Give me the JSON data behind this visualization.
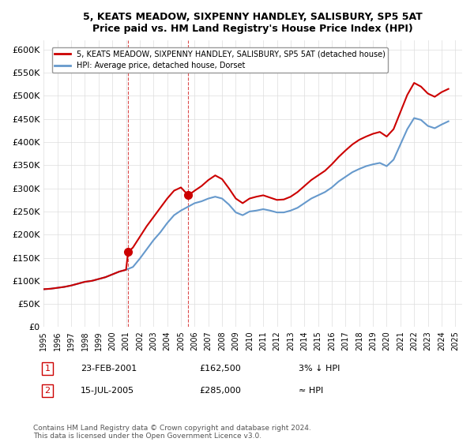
{
  "title": "5, KEATS MEADOW, SIXPENNY HANDLEY, SALISBURY, SP5 5AT",
  "subtitle": "Price paid vs. HM Land Registry's House Price Index (HPI)",
  "ylabel": "",
  "ylim": [
    0,
    620000
  ],
  "yticks": [
    0,
    50000,
    100000,
    150000,
    200000,
    250000,
    300000,
    350000,
    400000,
    450000,
    500000,
    550000,
    600000
  ],
  "xlim_start": 1995.0,
  "xlim_end": 2025.5,
  "legend_line1": "5, KEATS MEADOW, SIXPENNY HANDLEY, SALISBURY, SP5 5AT (detached house)",
  "legend_line2": "HPI: Average price, detached house, Dorset",
  "annotation1_label": "1",
  "annotation1_date": "23-FEB-2001",
  "annotation1_price": "£162,500",
  "annotation1_hpi": "3% ↓ HPI",
  "annotation2_label": "2",
  "annotation2_date": "15-JUL-2005",
  "annotation2_price": "£285,000",
  "annotation2_hpi": "≈ HPI",
  "footer": "Contains HM Land Registry data © Crown copyright and database right 2024.\nThis data is licensed under the Open Government Licence v3.0.",
  "line_color_property": "#cc0000",
  "line_color_hpi": "#6699cc",
  "marker_color_property": "#cc0000",
  "sale1_x": 2001.15,
  "sale1_y": 162500,
  "sale2_x": 2005.54,
  "sale2_y": 285000,
  "hpi_x": [
    1995.0,
    1995.5,
    1996.0,
    1996.5,
    1997.0,
    1997.5,
    1998.0,
    1998.5,
    1999.0,
    1999.5,
    2000.0,
    2000.5,
    2001.0,
    2001.5,
    2002.0,
    2002.5,
    2003.0,
    2003.5,
    2004.0,
    2004.5,
    2005.0,
    2005.5,
    2006.0,
    2006.5,
    2007.0,
    2007.5,
    2008.0,
    2008.5,
    2009.0,
    2009.5,
    2010.0,
    2010.5,
    2011.0,
    2011.5,
    2012.0,
    2012.5,
    2013.0,
    2013.5,
    2014.0,
    2014.5,
    2015.0,
    2015.5,
    2016.0,
    2016.5,
    2017.0,
    2017.5,
    2018.0,
    2018.5,
    2019.0,
    2019.5,
    2020.0,
    2020.5,
    2021.0,
    2021.5,
    2022.0,
    2022.5,
    2023.0,
    2023.5,
    2024.0,
    2024.5
  ],
  "hpi_y": [
    82000,
    83000,
    85000,
    87000,
    90000,
    94000,
    98000,
    100000,
    104000,
    108000,
    114000,
    120000,
    124000,
    130000,
    148000,
    168000,
    188000,
    205000,
    225000,
    242000,
    252000,
    260000,
    268000,
    272000,
    278000,
    282000,
    278000,
    265000,
    248000,
    242000,
    250000,
    252000,
    255000,
    252000,
    248000,
    248000,
    252000,
    258000,
    268000,
    278000,
    285000,
    292000,
    302000,
    315000,
    325000,
    335000,
    342000,
    348000,
    352000,
    355000,
    348000,
    362000,
    395000,
    428000,
    452000,
    448000,
    435000,
    430000,
    438000,
    445000
  ],
  "prop_x": [
    1995.0,
    1995.5,
    1996.0,
    1996.5,
    1997.0,
    1997.5,
    1998.0,
    1998.5,
    1999.0,
    1999.5,
    2000.0,
    2000.5,
    2001.0,
    2001.15,
    2001.5,
    2002.0,
    2002.5,
    2003.0,
    2003.5,
    2004.0,
    2004.5,
    2005.0,
    2005.54,
    2006.0,
    2006.5,
    2007.0,
    2007.5,
    2008.0,
    2008.5,
    2009.0,
    2009.5,
    2010.0,
    2010.5,
    2011.0,
    2011.5,
    2012.0,
    2012.5,
    2013.0,
    2013.5,
    2014.0,
    2014.5,
    2015.0,
    2015.5,
    2016.0,
    2016.5,
    2017.0,
    2017.5,
    2018.0,
    2018.5,
    2019.0,
    2019.5,
    2020.0,
    2020.5,
    2021.0,
    2021.5,
    2022.0,
    2022.5,
    2023.0,
    2023.5,
    2024.0,
    2024.5
  ],
  "prop_y": [
    82000,
    83000,
    85000,
    87000,
    90000,
    94000,
    98000,
    100000,
    104000,
    108000,
    114000,
    120000,
    124000,
    162500,
    172000,
    195000,
    218000,
    238000,
    258000,
    278000,
    295000,
    302000,
    285000,
    295000,
    305000,
    318000,
    328000,
    320000,
    300000,
    278000,
    268000,
    278000,
    282000,
    285000,
    280000,
    275000,
    276000,
    282000,
    292000,
    305000,
    318000,
    328000,
    338000,
    352000,
    368000,
    382000,
    395000,
    405000,
    412000,
    418000,
    422000,
    412000,
    428000,
    465000,
    502000,
    528000,
    520000,
    505000,
    498000,
    508000,
    515000
  ]
}
